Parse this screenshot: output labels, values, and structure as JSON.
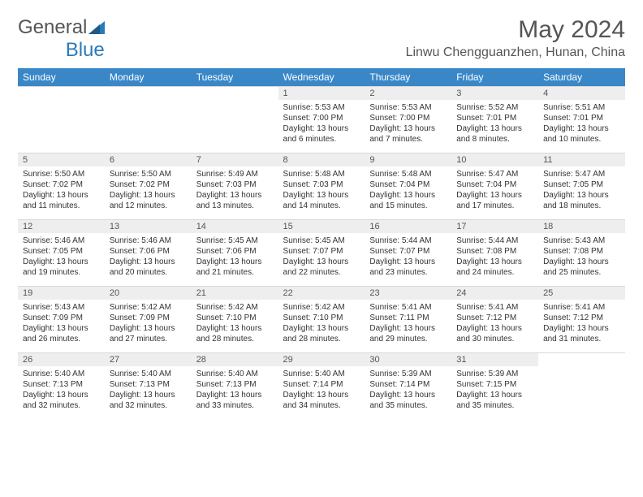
{
  "logo": {
    "text1": "General",
    "text2": "Blue"
  },
  "title": "May 2024",
  "location": "Linwu Chengguanzhen, Hunan, China",
  "colors": {
    "header_bg": "#3a87c8",
    "header_text": "#ffffff",
    "daynum_bg": "#eeeeee",
    "border": "#d8d8d8",
    "text": "#333333",
    "title_text": "#555555"
  },
  "weekdays": [
    "Sunday",
    "Monday",
    "Tuesday",
    "Wednesday",
    "Thursday",
    "Friday",
    "Saturday"
  ],
  "weeks": [
    [
      {
        "n": "",
        "lines": []
      },
      {
        "n": "",
        "lines": []
      },
      {
        "n": "",
        "lines": []
      },
      {
        "n": "1",
        "lines": [
          "Sunrise: 5:53 AM",
          "Sunset: 7:00 PM",
          "Daylight: 13 hours and 6 minutes."
        ]
      },
      {
        "n": "2",
        "lines": [
          "Sunrise: 5:53 AM",
          "Sunset: 7:00 PM",
          "Daylight: 13 hours and 7 minutes."
        ]
      },
      {
        "n": "3",
        "lines": [
          "Sunrise: 5:52 AM",
          "Sunset: 7:01 PM",
          "Daylight: 13 hours and 8 minutes."
        ]
      },
      {
        "n": "4",
        "lines": [
          "Sunrise: 5:51 AM",
          "Sunset: 7:01 PM",
          "Daylight: 13 hours and 10 minutes."
        ]
      }
    ],
    [
      {
        "n": "5",
        "lines": [
          "Sunrise: 5:50 AM",
          "Sunset: 7:02 PM",
          "Daylight: 13 hours and 11 minutes."
        ]
      },
      {
        "n": "6",
        "lines": [
          "Sunrise: 5:50 AM",
          "Sunset: 7:02 PM",
          "Daylight: 13 hours and 12 minutes."
        ]
      },
      {
        "n": "7",
        "lines": [
          "Sunrise: 5:49 AM",
          "Sunset: 7:03 PM",
          "Daylight: 13 hours and 13 minutes."
        ]
      },
      {
        "n": "8",
        "lines": [
          "Sunrise: 5:48 AM",
          "Sunset: 7:03 PM",
          "Daylight: 13 hours and 14 minutes."
        ]
      },
      {
        "n": "9",
        "lines": [
          "Sunrise: 5:48 AM",
          "Sunset: 7:04 PM",
          "Daylight: 13 hours and 15 minutes."
        ]
      },
      {
        "n": "10",
        "lines": [
          "Sunrise: 5:47 AM",
          "Sunset: 7:04 PM",
          "Daylight: 13 hours and 17 minutes."
        ]
      },
      {
        "n": "11",
        "lines": [
          "Sunrise: 5:47 AM",
          "Sunset: 7:05 PM",
          "Daylight: 13 hours and 18 minutes."
        ]
      }
    ],
    [
      {
        "n": "12",
        "lines": [
          "Sunrise: 5:46 AM",
          "Sunset: 7:05 PM",
          "Daylight: 13 hours and 19 minutes."
        ]
      },
      {
        "n": "13",
        "lines": [
          "Sunrise: 5:46 AM",
          "Sunset: 7:06 PM",
          "Daylight: 13 hours and 20 minutes."
        ]
      },
      {
        "n": "14",
        "lines": [
          "Sunrise: 5:45 AM",
          "Sunset: 7:06 PM",
          "Daylight: 13 hours and 21 minutes."
        ]
      },
      {
        "n": "15",
        "lines": [
          "Sunrise: 5:45 AM",
          "Sunset: 7:07 PM",
          "Daylight: 13 hours and 22 minutes."
        ]
      },
      {
        "n": "16",
        "lines": [
          "Sunrise: 5:44 AM",
          "Sunset: 7:07 PM",
          "Daylight: 13 hours and 23 minutes."
        ]
      },
      {
        "n": "17",
        "lines": [
          "Sunrise: 5:44 AM",
          "Sunset: 7:08 PM",
          "Daylight: 13 hours and 24 minutes."
        ]
      },
      {
        "n": "18",
        "lines": [
          "Sunrise: 5:43 AM",
          "Sunset: 7:08 PM",
          "Daylight: 13 hours and 25 minutes."
        ]
      }
    ],
    [
      {
        "n": "19",
        "lines": [
          "Sunrise: 5:43 AM",
          "Sunset: 7:09 PM",
          "Daylight: 13 hours and 26 minutes."
        ]
      },
      {
        "n": "20",
        "lines": [
          "Sunrise: 5:42 AM",
          "Sunset: 7:09 PM",
          "Daylight: 13 hours and 27 minutes."
        ]
      },
      {
        "n": "21",
        "lines": [
          "Sunrise: 5:42 AM",
          "Sunset: 7:10 PM",
          "Daylight: 13 hours and 28 minutes."
        ]
      },
      {
        "n": "22",
        "lines": [
          "Sunrise: 5:42 AM",
          "Sunset: 7:10 PM",
          "Daylight: 13 hours and 28 minutes."
        ]
      },
      {
        "n": "23",
        "lines": [
          "Sunrise: 5:41 AM",
          "Sunset: 7:11 PM",
          "Daylight: 13 hours and 29 minutes."
        ]
      },
      {
        "n": "24",
        "lines": [
          "Sunrise: 5:41 AM",
          "Sunset: 7:12 PM",
          "Daylight: 13 hours and 30 minutes."
        ]
      },
      {
        "n": "25",
        "lines": [
          "Sunrise: 5:41 AM",
          "Sunset: 7:12 PM",
          "Daylight: 13 hours and 31 minutes."
        ]
      }
    ],
    [
      {
        "n": "26",
        "lines": [
          "Sunrise: 5:40 AM",
          "Sunset: 7:13 PM",
          "Daylight: 13 hours and 32 minutes."
        ]
      },
      {
        "n": "27",
        "lines": [
          "Sunrise: 5:40 AM",
          "Sunset: 7:13 PM",
          "Daylight: 13 hours and 32 minutes."
        ]
      },
      {
        "n": "28",
        "lines": [
          "Sunrise: 5:40 AM",
          "Sunset: 7:13 PM",
          "Daylight: 13 hours and 33 minutes."
        ]
      },
      {
        "n": "29",
        "lines": [
          "Sunrise: 5:40 AM",
          "Sunset: 7:14 PM",
          "Daylight: 13 hours and 34 minutes."
        ]
      },
      {
        "n": "30",
        "lines": [
          "Sunrise: 5:39 AM",
          "Sunset: 7:14 PM",
          "Daylight: 13 hours and 35 minutes."
        ]
      },
      {
        "n": "31",
        "lines": [
          "Sunrise: 5:39 AM",
          "Sunset: 7:15 PM",
          "Daylight: 13 hours and 35 minutes."
        ]
      },
      {
        "n": "",
        "lines": []
      }
    ]
  ]
}
